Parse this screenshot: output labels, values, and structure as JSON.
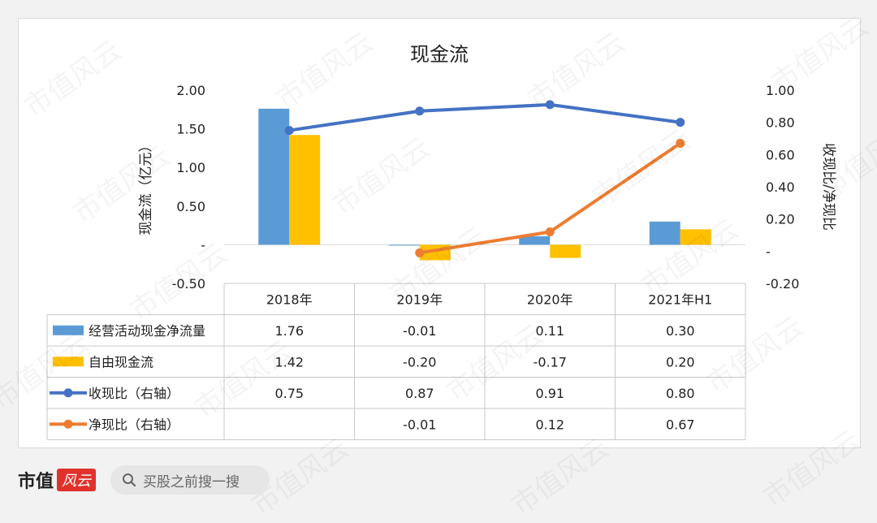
{
  "chart_data": {
    "type": "bar",
    "title": "现金流",
    "ylabel_left": "现金流（亿元）",
    "ylabel_right": "收现比/净现比",
    "categories": [
      "2018年",
      "2019年",
      "2020年",
      "2021年H1"
    ],
    "y_left_ticks": [
      "2.00",
      "1.50",
      "1.00",
      "0.50",
      "-",
      "-0.50"
    ],
    "y_left_range": [
      -0.5,
      2.0
    ],
    "y_right_ticks": [
      "1.00",
      "0.80",
      "0.60",
      "0.40",
      "0.20",
      "-",
      "-0.20"
    ],
    "y_right_range": [
      -0.2,
      1.0
    ],
    "series": [
      {
        "name": "经营活动现金净流量",
        "type": "bar",
        "axis": "left",
        "color": "#5b9bd5",
        "values": [
          1.76,
          -0.01,
          0.11,
          0.3
        ],
        "labels": [
          "1.76",
          "-0.01",
          "0.11",
          "0.30"
        ]
      },
      {
        "name": "自由现金流",
        "type": "bar",
        "axis": "left",
        "color": "#ffc000",
        "values": [
          1.42,
          -0.2,
          -0.17,
          0.2
        ],
        "labels": [
          "1.42",
          "-0.20",
          "-0.17",
          "0.20"
        ]
      },
      {
        "name": "收现比（右轴）",
        "type": "line",
        "axis": "right",
        "color": "#4472c4",
        "values": [
          0.75,
          0.87,
          0.91,
          0.8
        ],
        "labels": [
          "0.75",
          "0.87",
          "0.91",
          "0.80"
        ]
      },
      {
        "name": "净现比（右轴）",
        "type": "line",
        "axis": "right",
        "color": "#ed7d31",
        "values": [
          null,
          -0.01,
          0.12,
          0.67
        ],
        "labels": [
          "",
          "-0.01",
          "0.12",
          "0.67"
        ]
      }
    ]
  },
  "watermark_text": "市值风云",
  "footer": {
    "logo_text": "市值",
    "logo_badge": "风云",
    "search_icon": "search-icon",
    "search_text": "买股之前搜一搜"
  }
}
